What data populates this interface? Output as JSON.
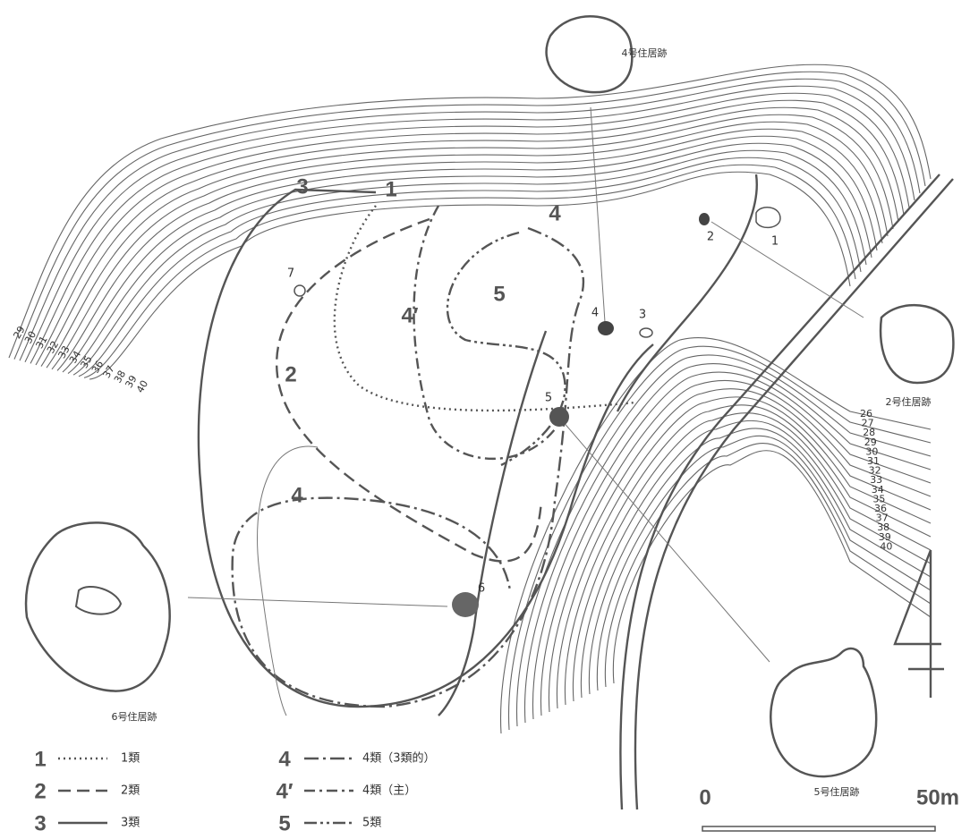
{
  "contours": {
    "left": [
      29,
      30,
      31,
      32,
      33,
      34,
      35,
      36,
      37,
      38,
      39,
      40
    ],
    "right": [
      26,
      27,
      28,
      29,
      30,
      31,
      32,
      33,
      34,
      35,
      36,
      37,
      38,
      39,
      40
    ]
  },
  "dwellings": [
    {
      "label": "4号住居跡"
    },
    {
      "label": "2号住居跡"
    },
    {
      "label": "6号住居跡"
    },
    {
      "label": "5号住居跡"
    }
  ],
  "line_labels": [
    "3",
    "1",
    "4",
    "5",
    "4′",
    "2",
    "4"
  ],
  "pits": [
    "1",
    "2",
    "3",
    "4",
    "5",
    "6",
    "7"
  ],
  "legend": [
    {
      "key": "1",
      "label": "1類"
    },
    {
      "key": "2",
      "label": "2類"
    },
    {
      "key": "3",
      "label": "3類"
    },
    {
      "key": "4",
      "label": "4類（3類的）"
    },
    {
      "key": "4′",
      "label": "4類（主）"
    },
    {
      "key": "5",
      "label": "5類"
    }
  ],
  "scale": {
    "start": "0",
    "end": "50m"
  }
}
